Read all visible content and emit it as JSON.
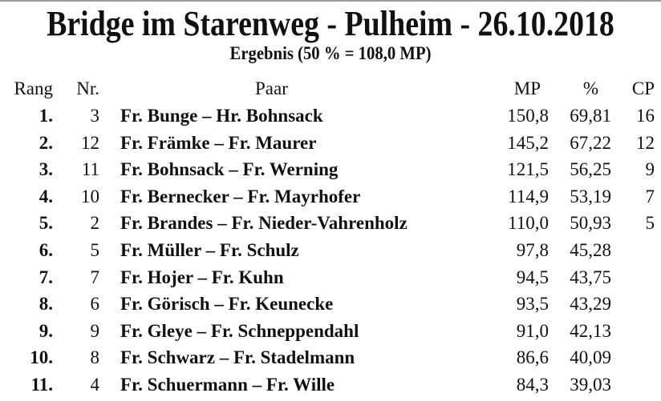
{
  "title": "Bridge im Starenweg - Pulheim - 26.10.2018",
  "subtitle": "Ergebnis  (50 % = 108,0 MP)",
  "headers": {
    "rang": "Rang",
    "nr": "Nr.",
    "paar": "Paar",
    "mp": "MP",
    "pct": "%",
    "cp": "CP"
  },
  "rows": [
    {
      "rang": "1.",
      "nr": "3",
      "paar": "Fr. Bunge – Hr. Bohnsack",
      "mp": "150,8",
      "pct": "69,81",
      "cp": "16"
    },
    {
      "rang": "2.",
      "nr": "12",
      "paar": "Fr. Främke – Fr. Maurer",
      "mp": "145,2",
      "pct": "67,22",
      "cp": "12"
    },
    {
      "rang": "3.",
      "nr": "11",
      "paar": "Fr. Bohnsack – Fr. Werning",
      "mp": "121,5",
      "pct": "56,25",
      "cp": "9"
    },
    {
      "rang": "4.",
      "nr": "10",
      "paar": "Fr. Bernecker – Fr. Mayrhofer",
      "mp": "114,9",
      "pct": "53,19",
      "cp": "7"
    },
    {
      "rang": "5.",
      "nr": "2",
      "paar": "Fr. Brandes – Fr. Nieder-Vahrenholz",
      "mp": "110,0",
      "pct": "50,93",
      "cp": "5"
    },
    {
      "rang": "6.",
      "nr": "5",
      "paar": "Fr. Müller – Fr. Schulz",
      "mp": "97,8",
      "pct": "45,28",
      "cp": ""
    },
    {
      "rang": "7.",
      "nr": "7",
      "paar": "Fr. Hojer – Fr. Kuhn",
      "mp": "94,5",
      "pct": "43,75",
      "cp": ""
    },
    {
      "rang": "8.",
      "nr": "6",
      "paar": "Fr. Görisch – Fr. Keunecke",
      "mp": "93,5",
      "pct": "43,29",
      "cp": ""
    },
    {
      "rang": "9.",
      "nr": "9",
      "paar": "Fr. Gleye – Fr. Schneppendahl",
      "mp": "91,0",
      "pct": "42,13",
      "cp": ""
    },
    {
      "rang": "10.",
      "nr": "8",
      "paar": "Fr. Schwarz – Fr. Stadelmann",
      "mp": "86,6",
      "pct": "40,09",
      "cp": ""
    },
    {
      "rang": "11.",
      "nr": "4",
      "paar": "Fr. Schuermann – Fr. Wille",
      "mp": "84,3",
      "pct": "39,03",
      "cp": ""
    }
  ]
}
